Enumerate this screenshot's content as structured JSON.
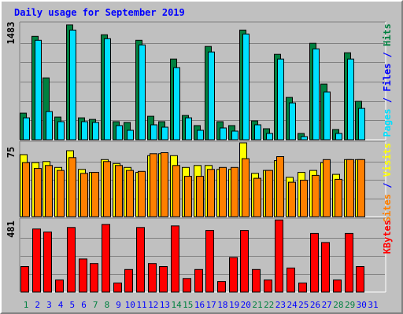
{
  "chart_data": {
    "type": "bar",
    "title": "Daily usage for September 2019",
    "categories": [
      "1",
      "2",
      "3",
      "4",
      "5",
      "6",
      "7",
      "8",
      "9",
      "10",
      "11",
      "12",
      "13",
      "14",
      "15",
      "16",
      "17",
      "18",
      "19",
      "20",
      "21",
      "22",
      "23",
      "24",
      "25",
      "26",
      "27",
      "28",
      "29",
      "30",
      "31"
    ],
    "weekend_days": [
      "1",
      "7",
      "8",
      "14",
      "15",
      "21",
      "22",
      "28",
      "29"
    ],
    "panels": [
      {
        "id": "hits-files-pages",
        "max_label": "1483",
        "ymax": 1483,
        "legend": [
          {
            "label": "Pages",
            "color": "#00e0ff"
          },
          {
            "label": "/",
            "color": "#0000ff"
          },
          {
            "label": "Files",
            "color": "#0000ff"
          },
          {
            "label": "/",
            "color": "#0000ff"
          },
          {
            "label": "Hits",
            "color": "#008040"
          }
        ],
        "series": [
          {
            "name": "Hits",
            "color": "#008040",
            "values": [
              340,
              1320,
              790,
              290,
              1465,
              280,
              260,
              1340,
              230,
              220,
              1270,
              300,
              230,
              1030,
              310,
              180,
              1190,
              230,
              180,
              1400,
              240,
              140,
              1090,
              540,
              80,
              1230,
              710,
              130,
              1110,
              490,
              0
            ]
          },
          {
            "name": "Files",
            "color": "#0000ff",
            "values": [
              0,
              0,
              0,
              0,
              0,
              0,
              0,
              0,
              0,
              0,
              0,
              0,
              0,
              0,
              0,
              0,
              0,
              0,
              0,
              0,
              0,
              0,
              0,
              0,
              0,
              0,
              0,
              0,
              0,
              0,
              0
            ]
          },
          {
            "name": "Pages",
            "color": "#00e0ff",
            "values": [
              280,
              1270,
              360,
              230,
              1400,
              230,
              220,
              1290,
              180,
              120,
              1210,
              190,
              160,
              920,
              280,
              120,
              1120,
              150,
              110,
              1350,
              190,
              80,
              1030,
              470,
              40,
              1160,
              610,
              80,
              1030,
              400,
              0
            ]
          }
        ]
      },
      {
        "id": "visits-sites",
        "max_label": "75",
        "ymax": 75,
        "legend": [
          {
            "label": "Sites",
            "color": "#ff8000"
          },
          {
            "label": "/",
            "color": "#0000ff"
          },
          {
            "label": "Visits",
            "color": "#ffff00"
          }
        ],
        "series": [
          {
            "name": "Visits",
            "color": "#ffff00",
            "values": [
              63,
              55,
              56,
              50,
              67,
              48,
              45,
              58,
              54,
              50,
              45,
              62,
              64,
              62,
              50,
              52,
              52,
              48,
              48,
              75,
              44,
              47,
              57,
              40,
              45,
              47,
              55,
              43,
              58,
              58,
              0
            ]
          },
          {
            "name": "Sites",
            "color": "#ff8000",
            "values": [
              55,
              49,
              52,
              47,
              60,
              44,
              45,
              56,
              52,
              47,
              46,
              64,
              65,
              52,
              41,
              41,
              48,
              50,
              50,
              59,
              39,
              47,
              61,
              35,
              37,
              42,
              58,
              38,
              58,
              58,
              0
            ]
          }
        ]
      },
      {
        "id": "kbytes",
        "max_label": "481",
        "ymax": 481,
        "legend": [
          {
            "label": "KBytes",
            "color": "#ff0000"
          }
        ],
        "series": [
          {
            "name": "KBytes",
            "color": "#ff0000",
            "values": [
              170,
              420,
              400,
              80,
              430,
              220,
              190,
              450,
              60,
              150,
              430,
              190,
              170,
              440,
              90,
              150,
              410,
              70,
              230,
              410,
              150,
              80,
              480,
              160,
              60,
              390,
              330,
              80,
              390,
              170,
              0
            ]
          }
        ]
      }
    ]
  },
  "colors": {
    "background": "#c0c0c0",
    "title": "#0000ff",
    "weekday_label": "#0000ff",
    "weekend_label": "#008040",
    "gridline": "#808080"
  }
}
